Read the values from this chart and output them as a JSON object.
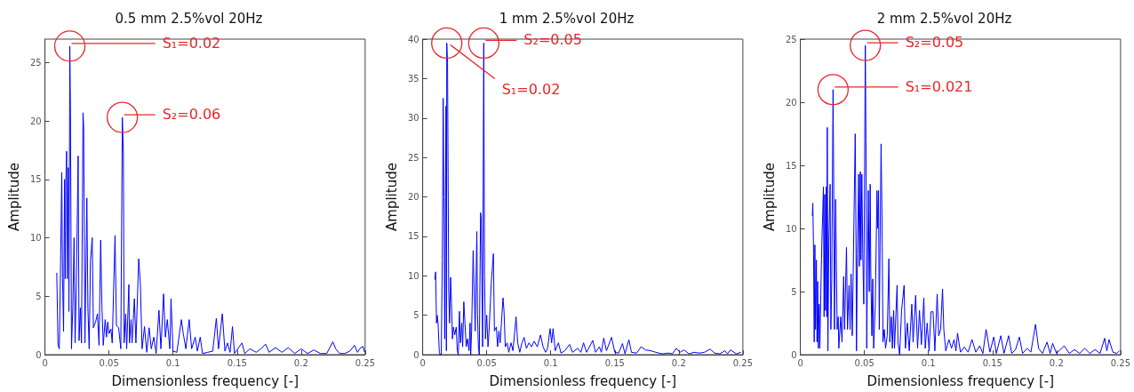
{
  "chart_data": [
    {
      "type": "line",
      "title": "0.5 mm 2.5%vol 20Hz",
      "xlabel": "Dimensionless frequency [-]",
      "ylabel": "Amplitude",
      "xlim": [
        0,
        0.25
      ],
      "xticks": [
        0,
        0.05,
        0.1,
        0.15,
        0.2,
        0.25
      ],
      "ylim": [
        0,
        27
      ],
      "yticks": [
        0,
        5,
        10,
        15,
        20,
        25
      ],
      "grid": false,
      "marker": "none",
      "line_style": "solid",
      "annotations": [
        {
          "text": "S₁=0.02",
          "x": 0.0194,
          "y": 26.4
        },
        {
          "text": "S₂=0.06",
          "x": 0.0604,
          "y": 20.3
        }
      ],
      "series": [
        {
          "color": "#0000ff",
          "x": [
            0.0092,
            0.0102,
            0.0112,
            0.0122,
            0.0131,
            0.0137,
            0.0145,
            0.0153,
            0.0158,
            0.0163,
            0.0169,
            0.0174,
            0.0182,
            0.0187,
            0.0194,
            0.0199,
            0.0207,
            0.0217,
            0.0227,
            0.0235,
            0.0245,
            0.0259,
            0.0266,
            0.0276,
            0.0285,
            0.0297,
            0.0302,
            0.0312,
            0.0327,
            0.0335,
            0.0345,
            0.0355,
            0.0369,
            0.0378,
            0.0395,
            0.041,
            0.0422,
            0.0435,
            0.0445,
            0.0455,
            0.047,
            0.048,
            0.049,
            0.05,
            0.0515,
            0.0525,
            0.0547,
            0.0558,
            0.0575,
            0.0592,
            0.0604,
            0.0612,
            0.0618,
            0.063,
            0.0638,
            0.0655,
            0.066,
            0.0672,
            0.068,
            0.0698,
            0.071,
            0.0732,
            0.0745,
            0.0758,
            0.0777,
            0.0795,
            0.0813,
            0.083,
            0.085,
            0.0868,
            0.089,
            0.0905,
            0.0926,
            0.094,
            0.0955,
            0.0975,
            0.0984,
            0.1,
            0.103,
            0.1065,
            0.108,
            0.11,
            0.1126,
            0.1145,
            0.1173,
            0.119,
            0.1212,
            0.123,
            0.127,
            0.131,
            0.1338,
            0.1355,
            0.1385,
            0.1405,
            0.1425,
            0.1445,
            0.1464,
            0.148,
            0.1538,
            0.156,
            0.16,
            0.165,
            0.1685,
            0.1723,
            0.175,
            0.18,
            0.185,
            0.19,
            0.195,
            0.2,
            0.205,
            0.21,
            0.215,
            0.22,
            0.2248,
            0.227,
            0.23,
            0.234,
            0.238,
            0.2417,
            0.244,
            0.2465,
            0.2484,
            0.2495
          ],
          "values": [
            7,
            0.8,
            0.5,
            8,
            15.6,
            6.5,
            2,
            15,
            6.5,
            14.8,
            17.4,
            6.5,
            16,
            3.7,
            26.4,
            20.7,
            0.5,
            4,
            10,
            1,
            6,
            17,
            1.2,
            4,
            1,
            20.7,
            19.5,
            1,
            13.4,
            4,
            0.5,
            8,
            10,
            2.3,
            2.8,
            3.5,
            0.8,
            9.8,
            4,
            0.8,
            3,
            1.5,
            2.8,
            1.8,
            2.2,
            1,
            10.2,
            2.5,
            2.3,
            0.5,
            20.3,
            17.3,
            1,
            3.5,
            0.5,
            6,
            1,
            3,
            1,
            4.8,
            1,
            8.2,
            6,
            0.5,
            2.4,
            0.2,
            2.3,
            0.5,
            1.5,
            0.1,
            3.8,
            0.5,
            5.2,
            1.5,
            3,
            0.5,
            4.8,
            0.3,
            0.2,
            3,
            1.8,
            0.5,
            3,
            0.5,
            1.5,
            0.3,
            1.5,
            0.1,
            0.2,
            0.3,
            3.1,
            0.5,
            3.5,
            0.3,
            1,
            0.2,
            2.4,
            0.1,
            1,
            0.1,
            0.5,
            0.2,
            0.5,
            0.9,
            0.2,
            0.6,
            0.2,
            0.6,
            0.1,
            0.5,
            0.1,
            0.4,
            0.1,
            0.1,
            1.1,
            0.5,
            0.1,
            0.1,
            0.3,
            0.8,
            0.2,
            0.6,
            0.7,
            0.2
          ]
        }
      ]
    },
    {
      "type": "line",
      "title": "1 mm 2.5%vol 20Hz",
      "xlabel": "Dimensionless frequency [-]",
      "ylabel": "Amplitude",
      "xlim": [
        0,
        0.25
      ],
      "xticks": [
        0,
        0.05,
        0.1,
        0.15,
        0.2,
        0.25
      ],
      "ylim": [
        0,
        40
      ],
      "yticks": [
        0,
        5,
        10,
        15,
        20,
        25,
        30,
        35,
        40
      ],
      "grid": false,
      "marker": "none",
      "line_style": "solid",
      "annotations": [
        {
          "text": "S₁=0.02",
          "x": 0.0188,
          "y": 39.5
        },
        {
          "text": "S₂=0.05",
          "x": 0.0477,
          "y": 39.5
        }
      ],
      "series": [
        {
          "color": "#0000ff",
          "x": [
            0.0095,
            0.0101,
            0.0108,
            0.0113,
            0.012,
            0.013,
            0.0135,
            0.0145,
            0.0153,
            0.016,
            0.0166,
            0.0172,
            0.0178,
            0.0182,
            0.0185,
            0.0188,
            0.0194,
            0.0203,
            0.021,
            0.0218,
            0.0225,
            0.0232,
            0.024,
            0.025,
            0.0262,
            0.027,
            0.0278,
            0.0287,
            0.0295,
            0.0305,
            0.0312,
            0.0321,
            0.033,
            0.034,
            0.035,
            0.0362,
            0.037,
            0.0375,
            0.0382,
            0.0394,
            0.0402,
            0.041,
            0.0423,
            0.0428,
            0.0435,
            0.0442,
            0.0452,
            0.0457,
            0.0462,
            0.0468,
            0.0473,
            0.0477,
            0.0483,
            0.049,
            0.05,
            0.051,
            0.052,
            0.0535,
            0.0552,
            0.056,
            0.0575,
            0.0585,
            0.0595,
            0.0605,
            0.0627,
            0.0635,
            0.0645,
            0.066,
            0.0672,
            0.069,
            0.0705,
            0.0729,
            0.0742,
            0.0758,
            0.0775,
            0.0792,
            0.081,
            0.083,
            0.085,
            0.087,
            0.0895,
            0.092,
            0.094,
            0.096,
            0.0975,
            0.0995,
            0.1007,
            0.1018,
            0.1035,
            0.106,
            0.108,
            0.111,
            0.1147,
            0.117,
            0.121,
            0.1235,
            0.1256,
            0.128,
            0.1328,
            0.135,
            0.138,
            0.1395,
            0.1414,
            0.1435,
            0.1475,
            0.15,
            0.153,
            0.156,
            0.158,
            0.161,
            0.163,
            0.167,
            0.1706,
            0.174,
            0.178,
            0.182,
            0.187,
            0.192,
            0.195,
            0.198,
            0.201,
            0.204,
            0.208,
            0.212,
            0.216,
            0.22,
            0.2244,
            0.228,
            0.232,
            0.236,
            0.238,
            0.2403,
            0.245,
            0.2485
          ],
          "values": [
            9.5,
            10.5,
            4,
            5,
            4,
            0.3,
            0,
            0,
            12,
            32.5,
            20,
            2,
            20,
            31.5,
            0.5,
            39.5,
            37,
            8,
            4,
            9.8,
            6.5,
            2,
            3.5,
            2.5,
            3.5,
            0.5,
            0,
            5.5,
            1.5,
            4,
            1,
            6.7,
            4,
            1,
            2,
            0.5,
            4,
            0,
            3,
            13.2,
            8,
            3,
            15.6,
            5,
            1,
            0,
            18,
            17.5,
            10,
            1,
            25,
            39.5,
            10,
            2,
            5,
            1,
            3.5,
            9,
            12.8,
            3,
            3.5,
            1,
            3,
            1.5,
            7.2,
            5.5,
            1,
            1.5,
            0.3,
            1.5,
            0.5,
            4.8,
            1.5,
            0.3,
            1.5,
            2.2,
            0.8,
            1.5,
            1,
            1.7,
            1,
            2.5,
            1,
            0.3,
            0.8,
            3.3,
            1.5,
            3.3,
            0.5,
            1.5,
            0.2,
            0.5,
            1.3,
            0.3,
            0.8,
            0.3,
            1.5,
            0.3,
            1.8,
            0.3,
            1,
            0.3,
            2.1,
            0.5,
            2.2,
            0.3,
            0.2,
            1.4,
            0.1,
            1.9,
            0.3,
            0.2,
            1,
            0.6,
            0.5,
            0.3,
            0.1,
            0.2,
            0.1,
            0.8,
            0.3,
            0.6,
            0.1,
            0.3,
            0.2,
            0.3,
            0.7,
            0.2,
            0.1,
            0.5,
            0.1,
            0.6,
            0.1,
            0.3
          ]
        }
      ]
    },
    {
      "type": "line",
      "title": "2 mm 2.5%vol 20Hz",
      "xlabel": "Dimensionless frequency [-]",
      "ylabel": "Amplitude",
      "xlim": [
        0,
        0.25
      ],
      "xticks": [
        0,
        0.05,
        0.1,
        0.15,
        0.2,
        0.25
      ],
      "ylim": [
        0,
        25
      ],
      "yticks": [
        0,
        5,
        10,
        15,
        20,
        25
      ],
      "grid": false,
      "marker": "none",
      "line_style": "solid",
      "annotations": [
        {
          "text": "S₁=0.021",
          "x": 0.0255,
          "y": 21
        },
        {
          "text": "S₂=0.05",
          "x": 0.0507,
          "y": 24.5
        }
      ],
      "series": [
        {
          "color": "#0000ff",
          "x": [
            0.0093,
            0.0097,
            0.0103,
            0.0108,
            0.0113,
            0.0118,
            0.0125,
            0.013,
            0.0135,
            0.014,
            0.0147,
            0.0152,
            0.0162,
            0.0168,
            0.018,
            0.0185,
            0.019,
            0.0196,
            0.0202,
            0.0206,
            0.021,
            0.0215,
            0.0222,
            0.0232,
            0.0238,
            0.0245,
            0.0255,
            0.026,
            0.0266,
            0.0275,
            0.028,
            0.0287,
            0.0295,
            0.03,
            0.0315,
            0.0325,
            0.0338,
            0.0345,
            0.036,
            0.0368,
            0.038,
            0.0388,
            0.0396,
            0.0405,
            0.0428,
            0.0433,
            0.0438,
            0.0445,
            0.0455,
            0.046,
            0.0468,
            0.0473,
            0.048,
            0.0487,
            0.0495,
            0.0507,
            0.0512,
            0.0518,
            0.053,
            0.0538,
            0.0545,
            0.055,
            0.0558,
            0.0565,
            0.0572,
            0.0585,
            0.0598,
            0.0603,
            0.061,
            0.0616,
            0.063,
            0.0637,
            0.0645,
            0.0655,
            0.0665,
            0.0678,
            0.0691,
            0.0698,
            0.071,
            0.0718,
            0.0728,
            0.0735,
            0.0755,
            0.0762,
            0.0775,
            0.079,
            0.081,
            0.082,
            0.0835,
            0.085,
            0.087,
            0.088,
            0.09,
            0.0915,
            0.093,
            0.0945,
            0.0964,
            0.0975,
            0.099,
            0.1005,
            0.102,
            0.1036,
            0.105,
            0.1068,
            0.108,
            0.1095,
            0.111,
            0.112,
            0.1135,
            0.116,
            0.118,
            0.12,
            0.1215,
            0.1227,
            0.125,
            0.128,
            0.131,
            0.134,
            0.137,
            0.14,
            0.1425,
            0.145,
            0.148,
            0.151,
            0.153,
            0.1565,
            0.159,
            0.1626,
            0.165,
            0.168,
            0.171,
            0.1735,
            0.177,
            0.18,
            0.1836,
            0.186,
            0.189,
            0.1926,
            0.195,
            0.197,
            0.2,
            0.203,
            0.206,
            0.21,
            0.214,
            0.218,
            0.222,
            0.226,
            0.23,
            0.234,
            0.2376,
            0.2393,
            0.241,
            0.244,
            0.247,
            0.249
          ],
          "values": [
            11,
            12,
            8,
            1,
            8.7,
            2,
            7.5,
            1,
            5.8,
            0.5,
            4,
            0.5,
            6.3,
            9,
            13.3,
            3,
            12.7,
            3.5,
            13.3,
            3,
            18,
            0.3,
            9,
            13.5,
            2,
            6,
            21,
            13.8,
            2,
            12.3,
            8,
            2,
            3,
            0.5,
            3,
            1,
            6.2,
            2,
            8.5,
            2,
            5.5,
            2,
            6.4,
            1.5,
            17.5,
            11,
            0.3,
            8,
            14.3,
            7,
            14.5,
            7.5,
            14.3,
            8,
            4,
            24.5,
            17,
            0.5,
            13,
            5,
            13.5,
            6.4,
            1.5,
            6,
            0.5,
            4,
            13,
            10,
            13,
            2,
            16.7,
            11,
            1,
            2,
            0.5,
            1.5,
            7.6,
            1,
            3,
            0.5,
            3.5,
            0.5,
            5.5,
            1,
            0,
            3.5,
            5.5,
            0.5,
            2.5,
            0.3,
            4,
            1,
            4.7,
            0.5,
            3.5,
            0.8,
            4.5,
            0.5,
            2.5,
            0.3,
            3.4,
            3.4,
            0.3,
            4.8,
            1.5,
            2,
            5.2,
            2,
            0.3,
            1.2,
            0.5,
            1.2,
            0.3,
            1.7,
            0.2,
            0.6,
            0.2,
            1.2,
            0.2,
            0.7,
            0.1,
            2,
            0.2,
            1.4,
            0.1,
            1.5,
            0.1,
            1.5,
            0.1,
            0.4,
            1.4,
            0.1,
            0.5,
            0.2,
            2.4,
            0.5,
            0.1,
            1,
            0.1,
            0.9,
            0.1,
            0.4,
            0.7,
            0.1,
            0.4,
            0.1,
            0.5,
            0.1,
            0.4,
            0.1,
            1.3,
            0.3,
            1.2,
            0.2,
            0.1,
            0.3
          ]
        }
      ]
    }
  ]
}
